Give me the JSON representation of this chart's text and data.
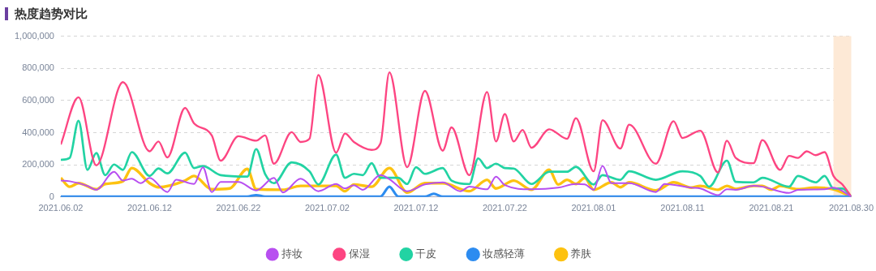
{
  "chart_data": {
    "type": "line",
    "title": "热度趋势对比",
    "xlim": [
      "2021-06-02",
      "2021-08-30"
    ],
    "xticks": [
      {
        "value": "2021-06-02",
        "label": "2021.06.02"
      },
      {
        "value": "2021-06-12",
        "label": "2021.06.12"
      },
      {
        "value": "2021-06-22",
        "label": "2021.06.22"
      },
      {
        "value": "2021-07-02",
        "label": "2021.07.02"
      },
      {
        "value": "2021-07-12",
        "label": "2021.07.12"
      },
      {
        "value": "2021-07-22",
        "label": "2021.07.22"
      },
      {
        "value": "2021-08-01",
        "label": "2021.08.01"
      },
      {
        "value": "2021-08-11",
        "label": "2021.08.11"
      },
      {
        "value": "2021-08-21",
        "label": "2021.08.21"
      },
      {
        "value": "2021-08-30",
        "label": "2021.08.30"
      }
    ],
    "ylim": [
      0,
      1000000
    ],
    "yticks": [
      0,
      {
        "value": 200000,
        "label": "200,000"
      },
      {
        "value": 400000,
        "label": "400,000"
      },
      {
        "value": 600000,
        "label": "600,000"
      },
      {
        "value": 800000,
        "label": "800,000"
      },
      {
        "value": 1000000,
        "label": "1,000,000"
      }
    ],
    "grid": "y",
    "legend": "bottom",
    "marker": "none",
    "bands": [
      {
        "axis": "x",
        "from": "2021-08-28",
        "to": "2021-08-30",
        "color": "#fde9d6"
      }
    ],
    "series": [
      {
        "name": "持妆",
        "color": "#b84ff0",
        "x": [
          "2021-06-02",
          "2021-06-03",
          "2021-06-05",
          "2021-06-06",
          "2021-06-08",
          "2021-06-09",
          "2021-06-10",
          "2021-06-11",
          "2021-06-12",
          "2021-06-14",
          "2021-06-15",
          "2021-06-17",
          "2021-06-18",
          "2021-06-19",
          "2021-06-20",
          "2021-06-22",
          "2021-06-24",
          "2021-06-26",
          "2021-06-27",
          "2021-06-29",
          "2021-07-01",
          "2021-07-03",
          "2021-07-04",
          "2021-07-05",
          "2021-07-06",
          "2021-07-08",
          "2021-07-09",
          "2021-07-11",
          "2021-07-13",
          "2021-07-15",
          "2021-07-17",
          "2021-07-18",
          "2021-07-20",
          "2021-07-21",
          "2021-07-22",
          "2021-07-25",
          "2021-07-28",
          "2021-07-30",
          "2021-07-31",
          "2021-08-01",
          "2021-08-02",
          "2021-08-03",
          "2021-08-05",
          "2021-08-08",
          "2021-08-09",
          "2021-08-12",
          "2021-08-13",
          "2021-08-15",
          "2021-08-16",
          "2021-08-17",
          "2021-08-19",
          "2021-08-20",
          "2021-08-23",
          "2021-08-24",
          "2021-08-27",
          "2021-08-28",
          "2021-08-30"
        ],
        "values": [
          102000,
          98000,
          69000,
          45000,
          157000,
          102000,
          114000,
          86000,
          119000,
          31000,
          107000,
          81000,
          185000,
          31000,
          94000,
          94000,
          41000,
          119000,
          28000,
          114000,
          36000,
          81000,
          53000,
          74000,
          45000,
          136000,
          111000,
          36000,
          78000,
          91000,
          36000,
          64000,
          48000,
          127000,
          74000,
          48000,
          58000,
          81000,
          78000,
          45000,
          193000,
          86000,
          86000,
          31000,
          81000,
          58000,
          53000,
          12000,
          48000,
          45000,
          69000,
          64000,
          25000,
          45000,
          48000,
          58000,
          3000
        ]
      },
      {
        "name": "保湿",
        "color": "#fd4582",
        "x": [
          "2021-06-02",
          "2021-06-04",
          "2021-06-06",
          "2021-06-09",
          "2021-06-12",
          "2021-06-13",
          "2021-06-14",
          "2021-06-16",
          "2021-06-17",
          "2021-06-19",
          "2021-06-20",
          "2021-06-22",
          "2021-06-24",
          "2021-06-25",
          "2021-06-26",
          "2021-06-28",
          "2021-06-29",
          "2021-06-30",
          "2021-07-01",
          "2021-07-03",
          "2021-07-04",
          "2021-07-05",
          "2021-07-07",
          "2021-07-08",
          "2021-07-09",
          "2021-07-11",
          "2021-07-13",
          "2021-07-15",
          "2021-07-16",
          "2021-07-18",
          "2021-07-20",
          "2021-07-21",
          "2021-07-22",
          "2021-07-23",
          "2021-07-24",
          "2021-07-25",
          "2021-07-27",
          "2021-07-29",
          "2021-07-30",
          "2021-08-01",
          "2021-08-02",
          "2021-08-04",
          "2021-08-05",
          "2021-08-08",
          "2021-08-10",
          "2021-08-11",
          "2021-08-13",
          "2021-08-15",
          "2021-08-16",
          "2021-08-17",
          "2021-08-19",
          "2021-08-20",
          "2021-08-22",
          "2021-08-23",
          "2021-08-24",
          "2021-08-25",
          "2021-08-26",
          "2021-08-27",
          "2021-08-28",
          "2021-08-29",
          "2021-08-30"
        ],
        "values": [
          326000,
          620000,
          197000,
          714000,
          284000,
          345000,
          246000,
          554000,
          458000,
          383000,
          226000,
          378000,
          350000,
          383000,
          207000,
          403000,
          342000,
          362000,
          759000,
          276000,
          395000,
          342000,
          293000,
          334000,
          775000,
          185000,
          660000,
          288000,
          433000,
          136000,
          653000,
          345000,
          516000,
          345000,
          417000,
          306000,
          421000,
          362000,
          490000,
          160000,
          478000,
          301000,
          450000,
          207000,
          471000,
          367000,
          412000,
          152000,
          350000,
          243000,
          210000,
          354000,
          169000,
          256000,
          243000,
          284000,
          260000,
          279000,
          131000,
          78000,
          3000
        ]
      },
      {
        "name": "干皮",
        "color": "#22d3a3",
        "x": [
          "2021-06-02",
          "2021-06-03",
          "2021-06-04",
          "2021-06-05",
          "2021-06-06",
          "2021-06-07",
          "2021-06-08",
          "2021-06-09",
          "2021-06-10",
          "2021-06-12",
          "2021-06-13",
          "2021-06-14",
          "2021-06-16",
          "2021-06-17",
          "2021-06-18",
          "2021-06-20",
          "2021-06-23",
          "2021-06-24",
          "2021-06-25",
          "2021-06-26",
          "2021-06-28",
          "2021-06-30",
          "2021-07-01",
          "2021-07-03",
          "2021-07-04",
          "2021-07-05",
          "2021-07-06",
          "2021-07-07",
          "2021-07-08",
          "2021-07-10",
          "2021-07-11",
          "2021-07-12",
          "2021-07-13",
          "2021-07-15",
          "2021-07-16",
          "2021-07-18",
          "2021-07-19",
          "2021-07-20",
          "2021-07-21",
          "2021-07-22",
          "2021-07-23",
          "2021-07-25",
          "2021-07-27",
          "2021-07-29",
          "2021-07-30",
          "2021-08-01",
          "2021-08-02",
          "2021-08-04",
          "2021-08-05",
          "2021-08-08",
          "2021-08-11",
          "2021-08-13",
          "2021-08-14",
          "2021-08-16",
          "2021-08-17",
          "2021-08-19",
          "2021-08-20",
          "2021-08-23",
          "2021-08-24",
          "2021-08-26",
          "2021-08-27",
          "2021-08-28",
          "2021-08-29",
          "2021-08-30"
        ],
        "values": [
          231000,
          243000,
          474000,
          169000,
          273000,
          136000,
          202000,
          169000,
          279000,
          131000,
          177000,
          147000,
          276000,
          180000,
          193000,
          136000,
          127000,
          298000,
          144000,
          86000,
          215000,
          160000,
          78000,
          263000,
          119000,
          144000,
          136000,
          210000,
          119000,
          119000,
          81000,
          185000,
          144000,
          180000,
          102000,
          81000,
          240000,
          180000,
          207000,
          180000,
          177000,
          81000,
          157000,
          157000,
          188000,
          78000,
          136000,
          107000,
          160000,
          107000,
          160000,
          131000,
          64000,
          226000,
          94000,
          91000,
          119000,
          64000,
          131000,
          91000,
          131000,
          53000,
          53000,
          3000
        ]
      },
      {
        "name": "妆感轻薄",
        "color": "#2d8cf0",
        "x": [
          "2021-06-02",
          "2021-06-23",
          "2021-06-24",
          "2021-06-25",
          "2021-07-08",
          "2021-07-09",
          "2021-07-10",
          "2021-07-13",
          "2021-07-14",
          "2021-07-15",
          "2021-08-30"
        ],
        "values": [
          3000,
          3000,
          12000,
          3000,
          3000,
          64000,
          3000,
          3000,
          20000,
          3000,
          3000
        ]
      },
      {
        "name": "养肤",
        "color": "#fdc210",
        "x": [
          "2021-06-02",
          "2021-06-03",
          "2021-06-04",
          "2021-06-06",
          "2021-06-07",
          "2021-06-09",
          "2021-06-10",
          "2021-06-12",
          "2021-06-13",
          "2021-06-16",
          "2021-06-17",
          "2021-06-19",
          "2021-06-21",
          "2021-06-23",
          "2021-06-24",
          "2021-06-27",
          "2021-06-29",
          "2021-07-01",
          "2021-07-03",
          "2021-07-04",
          "2021-07-05",
          "2021-07-07",
          "2021-07-09",
          "2021-07-11",
          "2021-07-13",
          "2021-07-15",
          "2021-07-18",
          "2021-07-20",
          "2021-07-21",
          "2021-07-23",
          "2021-07-25",
          "2021-07-27",
          "2021-07-28",
          "2021-07-29",
          "2021-07-30",
          "2021-07-31",
          "2021-08-01",
          "2021-08-03",
          "2021-08-04",
          "2021-08-05",
          "2021-08-08",
          "2021-08-10",
          "2021-08-12",
          "2021-08-13",
          "2021-08-15",
          "2021-08-16",
          "2021-08-17",
          "2021-08-19",
          "2021-08-20",
          "2021-08-21",
          "2021-08-22",
          "2021-08-24",
          "2021-08-26",
          "2021-08-28",
          "2021-08-30"
        ],
        "values": [
          119000,
          64000,
          86000,
          48000,
          81000,
          98000,
          180000,
          86000,
          61000,
          102000,
          131000,
          48000,
          53000,
          174000,
          48000,
          45000,
          69000,
          69000,
          69000,
          36000,
          78000,
          64000,
          180000,
          28000,
          86000,
          86000,
          36000,
          107000,
          53000,
          102000,
          45000,
          169000,
          78000,
          107000,
          81000,
          119000,
          45000,
          91000,
          61000,
          91000,
          41000,
          91000,
          58000,
          69000,
          45000,
          69000,
          50000,
          69000,
          69000,
          45000,
          69000,
          48000,
          58000,
          48000,
          3000
        ]
      }
    ]
  }
}
